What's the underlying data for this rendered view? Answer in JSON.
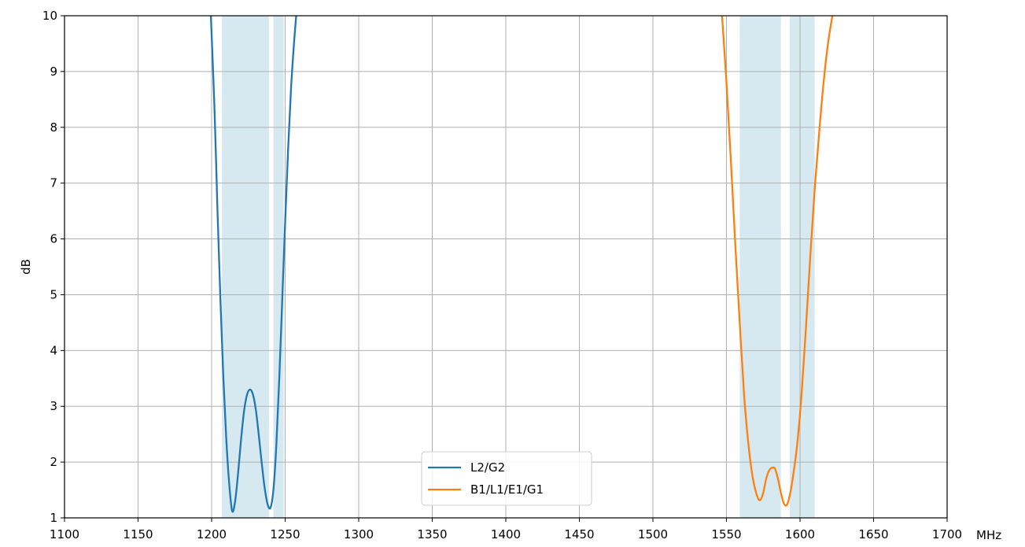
{
  "chart_data": {
    "type": "line",
    "title": "",
    "xlabel": "MHz",
    "ylabel": "dB",
    "xlim": [
      1100,
      1700
    ],
    "ylim": [
      1,
      10
    ],
    "grid": true,
    "legend_position": "bottom-center",
    "xticks": [
      1100,
      1150,
      1200,
      1250,
      1300,
      1350,
      1400,
      1450,
      1500,
      1550,
      1600,
      1650,
      1700
    ],
    "yticks": [
      1,
      2,
      3,
      4,
      5,
      6,
      7,
      8,
      9,
      10
    ],
    "shaded_bands": [
      {
        "x0": 1207,
        "x1": 1239,
        "color": "#d6e9f1"
      },
      {
        "x0": 1242,
        "x1": 1249,
        "color": "#d6e9f1"
      },
      {
        "x0": 1559,
        "x1": 1587,
        "color": "#d6e9f1"
      },
      {
        "x0": 1593,
        "x1": 1610,
        "color": "#d6e9f1"
      }
    ],
    "series": [
      {
        "name": "L2/G2",
        "color": "#1f77b4",
        "points": [
          [
            1199.5,
            10
          ],
          [
            1202,
            8.3
          ],
          [
            1204,
            6.5
          ],
          [
            1206,
            4.9
          ],
          [
            1208,
            3.5
          ],
          [
            1210,
            2.4
          ],
          [
            1212,
            1.6
          ],
          [
            1214,
            1.12
          ],
          [
            1216,
            1.3
          ],
          [
            1218,
            1.8
          ],
          [
            1220,
            2.4
          ],
          [
            1222,
            2.9
          ],
          [
            1224,
            3.2
          ],
          [
            1226,
            3.3
          ],
          [
            1228,
            3.22
          ],
          [
            1230,
            2.95
          ],
          [
            1232,
            2.5
          ],
          [
            1234,
            2.0
          ],
          [
            1236,
            1.55
          ],
          [
            1238,
            1.25
          ],
          [
            1240,
            1.18
          ],
          [
            1242,
            1.5
          ],
          [
            1244,
            2.3
          ],
          [
            1246,
            3.5
          ],
          [
            1248,
            4.9
          ],
          [
            1250,
            6.3
          ],
          [
            1252,
            7.6
          ],
          [
            1254,
            8.7
          ],
          [
            1256,
            9.5
          ],
          [
            1257.5,
            10
          ]
        ]
      },
      {
        "name": "B1/L1/E1/G1",
        "color": "#ff7f0e",
        "points": [
          [
            1547,
            10
          ],
          [
            1550,
            8.8
          ],
          [
            1553,
            7.4
          ],
          [
            1556,
            5.9
          ],
          [
            1559,
            4.5
          ],
          [
            1562,
            3.2
          ],
          [
            1565,
            2.3
          ],
          [
            1568,
            1.7
          ],
          [
            1571,
            1.38
          ],
          [
            1573,
            1.32
          ],
          [
            1575,
            1.45
          ],
          [
            1577,
            1.7
          ],
          [
            1579,
            1.85
          ],
          [
            1581,
            1.9
          ],
          [
            1583,
            1.88
          ],
          [
            1585,
            1.7
          ],
          [
            1587,
            1.45
          ],
          [
            1589,
            1.26
          ],
          [
            1591,
            1.23
          ],
          [
            1593,
            1.4
          ],
          [
            1595,
            1.7
          ],
          [
            1598,
            2.3
          ],
          [
            1601,
            3.2
          ],
          [
            1604,
            4.4
          ],
          [
            1607,
            5.7
          ],
          [
            1610,
            6.9
          ],
          [
            1613,
            7.9
          ],
          [
            1616,
            8.8
          ],
          [
            1619,
            9.5
          ],
          [
            1622,
            10
          ]
        ]
      }
    ]
  }
}
